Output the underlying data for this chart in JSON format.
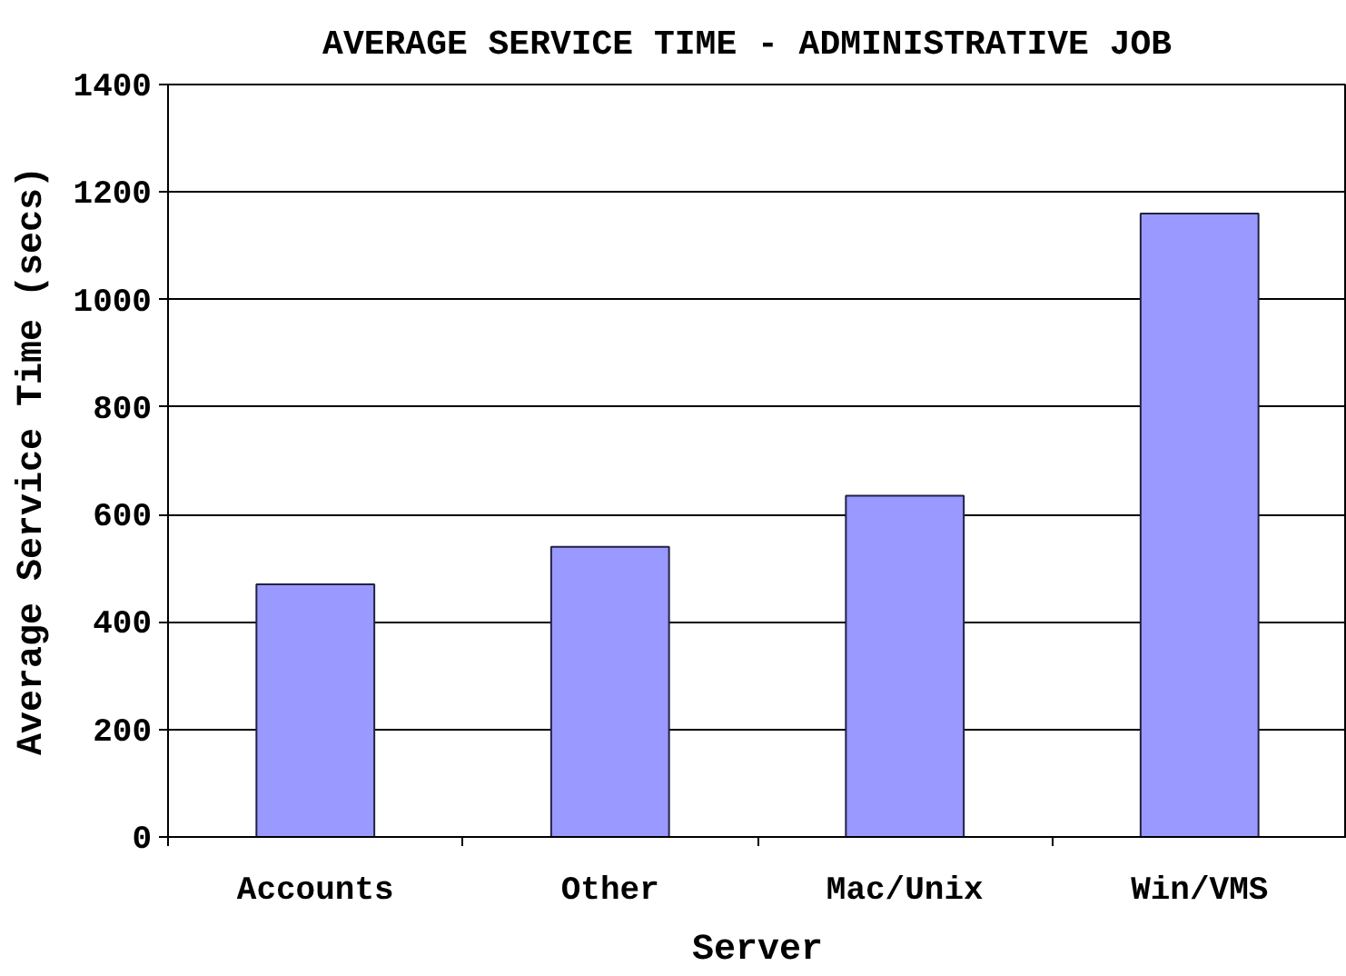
{
  "chart_data": {
    "type": "bar",
    "title": "AVERAGE SERVICE TIME -  ADMINISTRATIVE JOB",
    "xlabel": "Server",
    "ylabel": "Average Service Time (secs)",
    "categories": [
      "Accounts",
      "Other",
      "Mac/Unix",
      "Win/VMS"
    ],
    "values": [
      470,
      540,
      635,
      1160
    ],
    "color": "#9999ff",
    "ylim": [
      0,
      1400
    ],
    "yticks": [
      0,
      200,
      400,
      600,
      800,
      1000,
      1200,
      1400
    ],
    "grid": "y"
  }
}
